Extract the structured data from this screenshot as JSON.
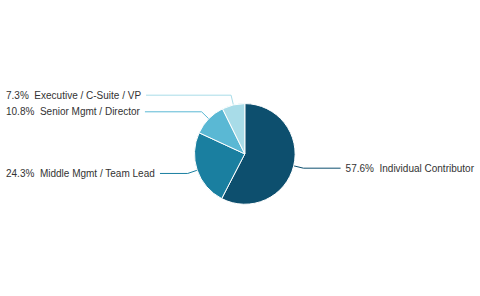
{
  "chart_data": {
    "type": "pie",
    "categories": [
      "57.6%  Individual Contributor",
      "24.3%  Middle Mgmt / Team Lead",
      "10.8%  Senior Mgmt / Director",
      "7.3%  Executive / C-Suite / VP"
    ],
    "values": [
      57.6,
      24.3,
      10.8,
      7.3
    ],
    "colors": [
      "#0d4f6e",
      "#1a7fa0",
      "#5ab8d4",
      "#a8dce8"
    ]
  }
}
